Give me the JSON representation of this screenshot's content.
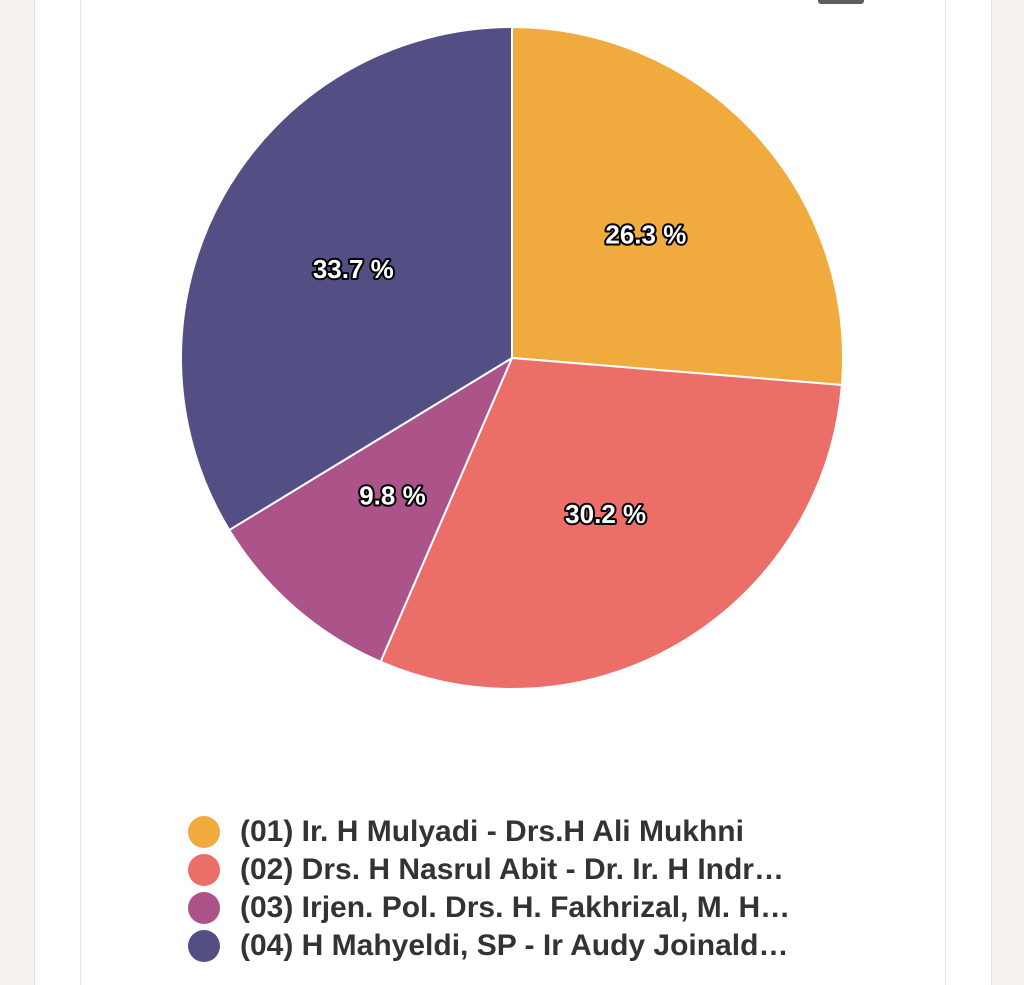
{
  "chart_data": {
    "type": "pie",
    "categories": [
      "(01) Ir. H Mulyadi - Drs.H Ali Mukhni",
      "(02) Drs. H Nasrul Abit - Dr. Ir. H Indr…",
      "(03) Irjen. Pol. Drs. H. Fakhrizal, M. H…",
      "(04) H Mahyeldi, SP - Ir Audy Joinald…"
    ],
    "values": [
      26.3,
      30.2,
      9.8,
      33.7
    ],
    "data_labels": [
      "26.3 %",
      "30.2 %",
      "9.8 %",
      "33.7 %"
    ],
    "colors": [
      "#f0aa3d",
      "#ec6e68",
      "#ac5489",
      "#534f85"
    ],
    "legend_position": "bottom"
  }
}
